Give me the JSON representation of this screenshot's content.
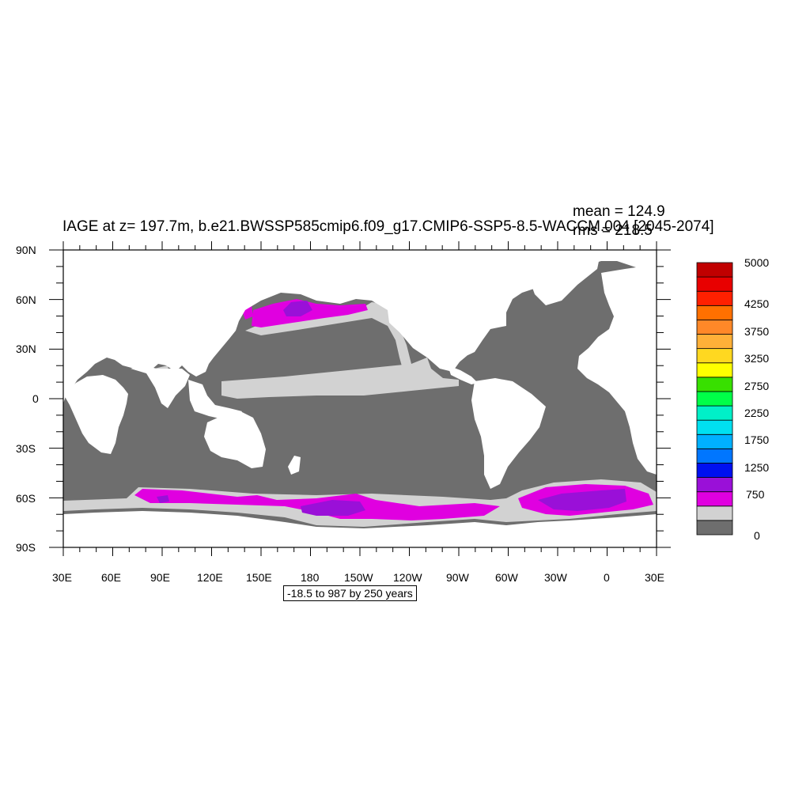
{
  "title": "IAGE at z= 197.7m, b.e21.BWSSP585cmip6.f09_g17.CMIP6-SSP5-8.5-WACCM.004 [2045-2074]",
  "stats": {
    "mean": "mean = 124.9",
    "rms": "rms = 218.5"
  },
  "footer_label": "-18.5 to 987 by 250 years",
  "axes": {
    "lon_labels": [
      "30E",
      "60E",
      "90E",
      "120E",
      "150E",
      "180",
      "150W",
      "120W",
      "90W",
      "60W",
      "30W",
      "0",
      "30E"
    ],
    "lat_labels": [
      "90N",
      "60N",
      "30N",
      "0",
      "30S",
      "60S",
      "90S"
    ]
  },
  "colorbar": {
    "colors": [
      "#6e6e6e",
      "#d2d2d2",
      "#e000e0",
      "#9a10d8",
      "#0010f0",
      "#0076ff",
      "#00b0ff",
      "#00e0f0",
      "#00f0c8",
      "#00ff48",
      "#38e000",
      "#ffff00",
      "#ffd820",
      "#ffb038",
      "#ff8828",
      "#ff7000",
      "#ff2000",
      "#e80000",
      "#c00000"
    ],
    "labels": [
      {
        "index": 0,
        "text": "0"
      },
      {
        "index": 3,
        "text": "750"
      },
      {
        "index": 5,
        "text": "1250"
      },
      {
        "index": 7,
        "text": "1750"
      },
      {
        "index": 9,
        "text": "2250"
      },
      {
        "index": 11,
        "text": "2750"
      },
      {
        "index": 13,
        "text": "3250"
      },
      {
        "index": 15,
        "text": "3750"
      },
      {
        "index": 17,
        "text": "4250"
      },
      {
        "index": 19,
        "text": "5000"
      }
    ]
  },
  "map_colors": {
    "land": "#ffffff",
    "ocean_young": "#6e6e6e",
    "ocean_light": "#d2d2d2",
    "magenta": "#e000e0",
    "purple": "#9a10d8"
  }
}
